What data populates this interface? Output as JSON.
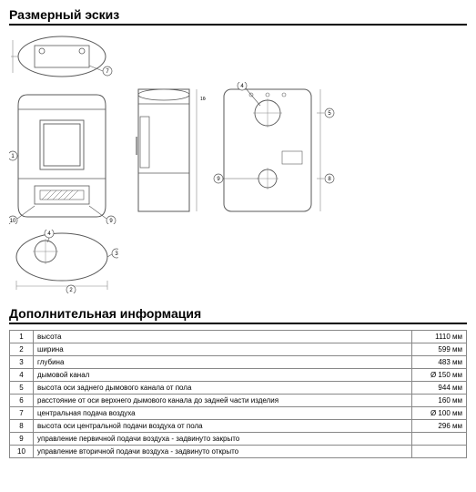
{
  "titles": {
    "sketch": "Размерный эскиз",
    "info": "Дополнительная информация"
  },
  "diagram": {
    "type": "technical-drawing",
    "stroke": "#5a5a5a",
    "stroke_thin": "#888888",
    "fill_bg": "#ffffff",
    "callout_font": 6
  },
  "specs": [
    {
      "n": "1",
      "label": "высота",
      "value": "1110 мм"
    },
    {
      "n": "2",
      "label": "ширина",
      "value": "599 мм"
    },
    {
      "n": "3",
      "label": "глубина",
      "value": "483 мм"
    },
    {
      "n": "4",
      "label": "дымовой канал",
      "value": "Ø 150 мм"
    },
    {
      "n": "5",
      "label": "высота оси заднего дымового канала от пола",
      "value": "944 мм"
    },
    {
      "n": "6",
      "label": "расстояние от оси верхнего дымового канала до задней части изделия",
      "value": "160 мм"
    },
    {
      "n": "7",
      "label": "центральная подача воздуха",
      "value": "Ø 100 мм"
    },
    {
      "n": "8",
      "label": "высота оси центральной подачи воздуха от пола",
      "value": "296 мм"
    },
    {
      "n": "9",
      "label": "управление первичной подачи воздуха - задвинуто закрыто",
      "value": ""
    },
    {
      "n": "10",
      "label": "управление вторичной подачи воздуха - задвинуто открыто",
      "value": ""
    }
  ]
}
